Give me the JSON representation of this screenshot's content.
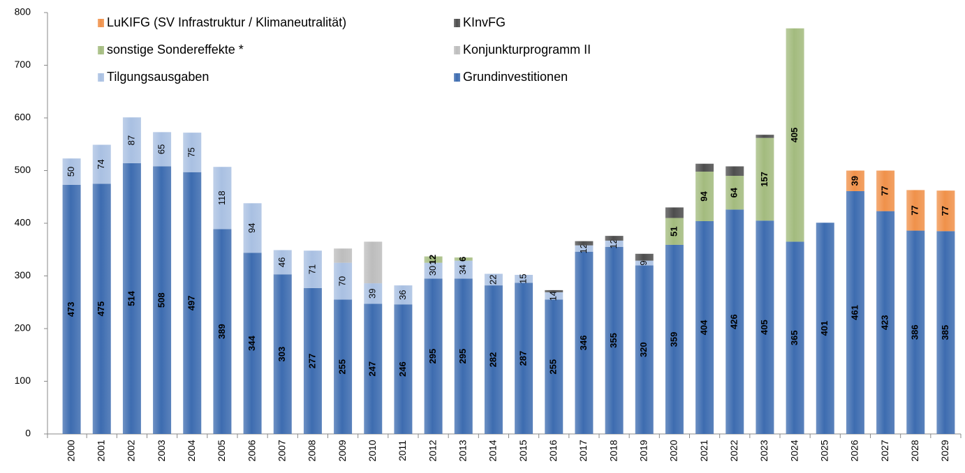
{
  "chart_data": {
    "type": "stacked_bar",
    "categories": [
      "2000",
      "2001",
      "2002",
      "2003",
      "2004",
      "2005",
      "2006",
      "2007",
      "2008",
      "2009",
      "2010",
      "2011",
      "2012",
      "2013",
      "2014",
      "2015",
      "2016",
      "2017",
      "2018",
      "2019",
      "2020",
      "2021",
      "2022",
      "2023",
      "2024",
      "2025",
      "2026",
      "2027",
      "2028",
      "2029"
    ],
    "series": [
      {
        "name": "Grundinvestitionen",
        "color": "#3d6cb0",
        "show_labels": true,
        "values": [
          473,
          475,
          514,
          508,
          497,
          389,
          344,
          303,
          277,
          255,
          247,
          246,
          295,
          295,
          282,
          287,
          255,
          346,
          355,
          320,
          359,
          404,
          426,
          405,
          365,
          401,
          461,
          423,
          386,
          385
        ]
      },
      {
        "name": "Tilgungsausgaben",
        "color": "#a9c0e2",
        "show_labels": true,
        "values": [
          50,
          74,
          87,
          65,
          75,
          118,
          94,
          46,
          71,
          70,
          39,
          36,
          30,
          34,
          22,
          15,
          14,
          12,
          12,
          9,
          null,
          null,
          null,
          null,
          null,
          null,
          null,
          null,
          null,
          null
        ]
      },
      {
        "name": "Konjunkturprogramm II",
        "color": "#bdbdbd",
        "show_labels": false,
        "values": [
          null,
          null,
          null,
          null,
          null,
          null,
          null,
          null,
          null,
          27,
          79,
          null,
          null,
          null,
          null,
          null,
          null,
          null,
          null,
          null,
          null,
          null,
          null,
          null,
          null,
          null,
          null,
          null,
          null,
          null
        ]
      },
      {
        "name": "sonstige Sondereffekte *",
        "color": "#a3bb7e",
        "show_labels": true,
        "values": [
          null,
          null,
          null,
          null,
          null,
          null,
          null,
          null,
          null,
          null,
          null,
          null,
          12,
          6,
          null,
          null,
          null,
          null,
          null,
          null,
          51,
          94,
          64,
          157,
          405,
          null,
          null,
          null,
          null,
          null
        ]
      },
      {
        "name": "KInvFG",
        "color": "#4d4d4d",
        "show_labels": false,
        "values": [
          null,
          null,
          null,
          null,
          null,
          null,
          null,
          null,
          null,
          null,
          null,
          null,
          null,
          null,
          null,
          null,
          4,
          8,
          9,
          13,
          20,
          15,
          18,
          6,
          null,
          null,
          null,
          null,
          null,
          null
        ]
      },
      {
        "name": "LuKIFG (SV Infrastruktur / Klimaneutralität)",
        "color": "#f0914a",
        "show_labels": true,
        "values": [
          null,
          null,
          null,
          null,
          null,
          null,
          null,
          null,
          null,
          null,
          null,
          null,
          null,
          null,
          null,
          null,
          null,
          null,
          null,
          null,
          null,
          null,
          null,
          null,
          null,
          null,
          39,
          77,
          77,
          77
        ]
      }
    ],
    "ylim": [
      0,
      800
    ],
    "yticks": [
      0,
      100,
      200,
      300,
      400,
      500,
      600,
      700,
      800
    ],
    "grid": false
  }
}
